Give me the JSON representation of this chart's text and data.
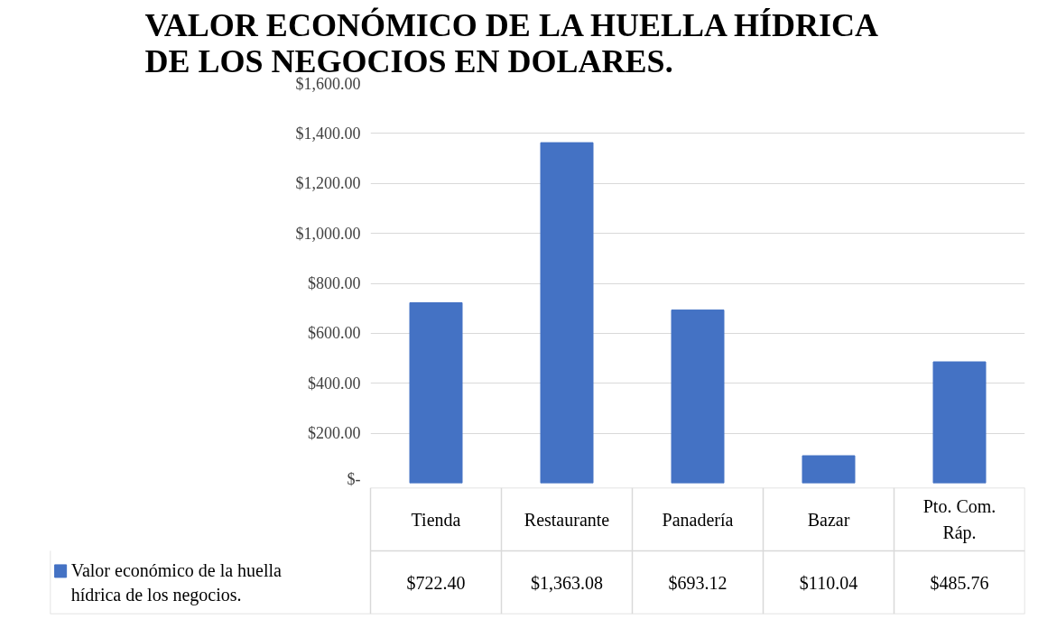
{
  "chart_data": {
    "type": "bar",
    "title": "VALOR ECONÓMICO DE LA HUELLA HÍDRICA DE LOS NEGOCIOS EN DOLARES.",
    "categories": [
      "Tienda",
      "Restaurante",
      "Panadería",
      "Bazar",
      "Pto. Com. Ráp."
    ],
    "series": [
      {
        "name": "Valor económico de la huella hídrica de los negocios.",
        "color": "#4472c4",
        "values": [
          722.4,
          1363.08,
          693.12,
          110.04,
          485.76
        ],
        "value_labels": [
          "$722.40",
          "$1,363.08",
          "$693.12",
          "$110.04",
          "$485.76"
        ]
      }
    ],
    "ylim": [
      0,
      1600
    ],
    "yticks": [
      {
        "value": 0,
        "label": "$-"
      },
      {
        "value": 200,
        "label": "$200.00"
      },
      {
        "value": 400,
        "label": "$400.00"
      },
      {
        "value": 600,
        "label": "$600.00"
      },
      {
        "value": 800,
        "label": "$800.00"
      },
      {
        "value": 1000,
        "label": "$1,000.00"
      },
      {
        "value": 1200,
        "label": "$1,200.00"
      },
      {
        "value": 1400,
        "label": "$1,400.00"
      },
      {
        "value": 1600,
        "label": "$1,600.00"
      }
    ],
    "grid": "y",
    "legend": "bottom left",
    "data_labels": true
  }
}
